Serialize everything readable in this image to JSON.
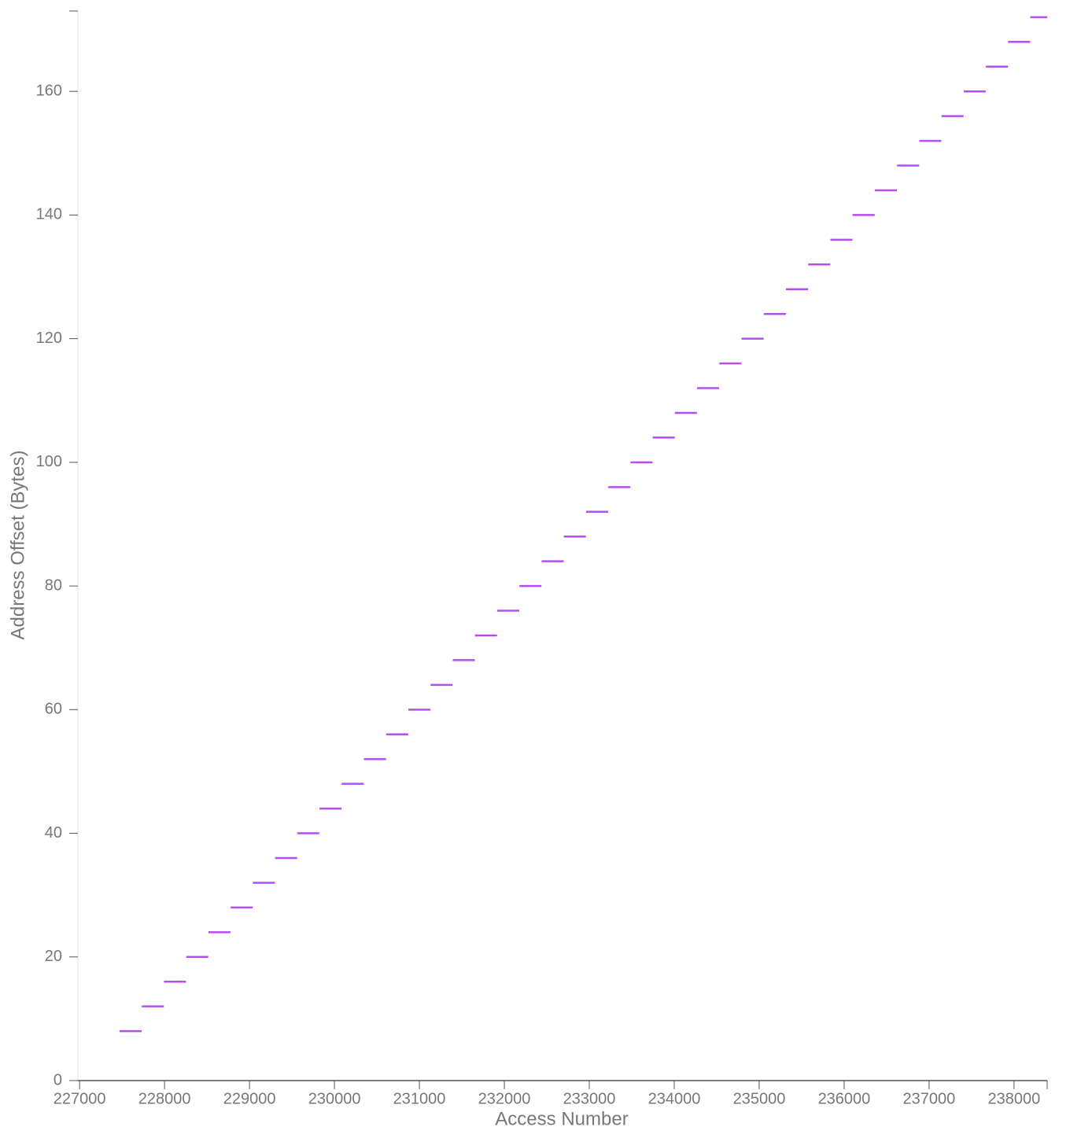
{
  "chart_data": {
    "type": "segment",
    "x_label": "Access Number",
    "y_label": "Address Offset (Bytes)",
    "color": "#b44ef0",
    "xlim": [
      226980,
      238390
    ],
    "ylim": [
      0,
      173
    ],
    "xticks": [
      227000,
      228000,
      229000,
      230000,
      231000,
      232000,
      233000,
      234000,
      235000,
      236000,
      237000,
      238000
    ],
    "yticks": [
      0,
      20,
      40,
      60,
      80,
      100,
      120,
      140,
      160
    ],
    "x_start": [
      227470,
      227732,
      227993,
      228255,
      228516,
      228778,
      229039,
      229301,
      229562,
      229824,
      230085,
      230347,
      230608,
      230870,
      231131,
      231393,
      231654,
      231916,
      232177,
      232439,
      232700,
      232962,
      233223,
      233485,
      233746,
      234008,
      234269,
      234531,
      234792,
      235054,
      235315,
      235577,
      235838,
      236100,
      236361,
      236623,
      236884,
      237146,
      237407,
      237669,
      237930,
      238192
    ],
    "x_end": [
      227730,
      227992,
      228253,
      228515,
      228776,
      229038,
      229299,
      229561,
      229822,
      230084,
      230345,
      230607,
      230868,
      231130,
      231391,
      231653,
      231914,
      232176,
      232437,
      232699,
      232960,
      233222,
      233483,
      233745,
      234006,
      234268,
      234529,
      234791,
      235052,
      235314,
      235575,
      235837,
      236098,
      236360,
      236621,
      236883,
      237144,
      237406,
      237667,
      237929,
      238190,
      238452
    ],
    "values": [
      8,
      12,
      16,
      20,
      24,
      28,
      32,
      36,
      40,
      44,
      48,
      52,
      56,
      60,
      64,
      68,
      72,
      76,
      80,
      84,
      88,
      92,
      96,
      100,
      104,
      108,
      112,
      116,
      120,
      124,
      128,
      132,
      136,
      140,
      144,
      148,
      152,
      156,
      160,
      164,
      168,
      172
    ]
  }
}
